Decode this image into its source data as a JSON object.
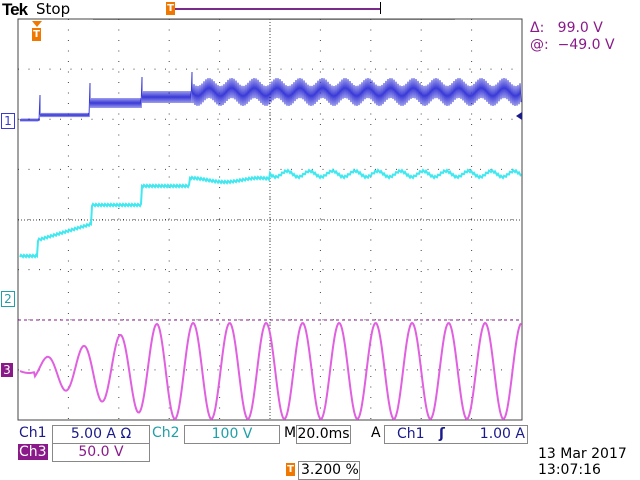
{
  "header": {
    "brand": "Tek",
    "status": "Stop"
  },
  "cursor_readout": {
    "delta_label": "Δ:",
    "delta_value": "99.0 V",
    "at_label": "@:",
    "at_value": "−49.0 V"
  },
  "markers": {
    "trigger": "T",
    "ch1": "1",
    "ch2": "2",
    "ch3": "3"
  },
  "colors": {
    "ch1": "#3a3ad8",
    "ch2": "#40e8f0",
    "ch3": "#e060e0",
    "trigger": "#f07800",
    "cursor": "#8a1a8a"
  },
  "footer": {
    "ch1_label": "Ch1",
    "ch1_scale": "5.00 A Ω",
    "ch2_label": "Ch2",
    "ch2_scale": "100 V",
    "ch3_label": "Ch3",
    "ch3_scale": "50.0 V",
    "timebase_label": "M",
    "timebase": "20.0ms",
    "trigger_mode": "A",
    "trigger_source": "Ch1",
    "trigger_slope": "rising-edge-icon",
    "trigger_level": "1.00 A",
    "trigger_position": "3.200 %",
    "date": "13 Mar  2017",
    "time": "13:07:16"
  }
}
